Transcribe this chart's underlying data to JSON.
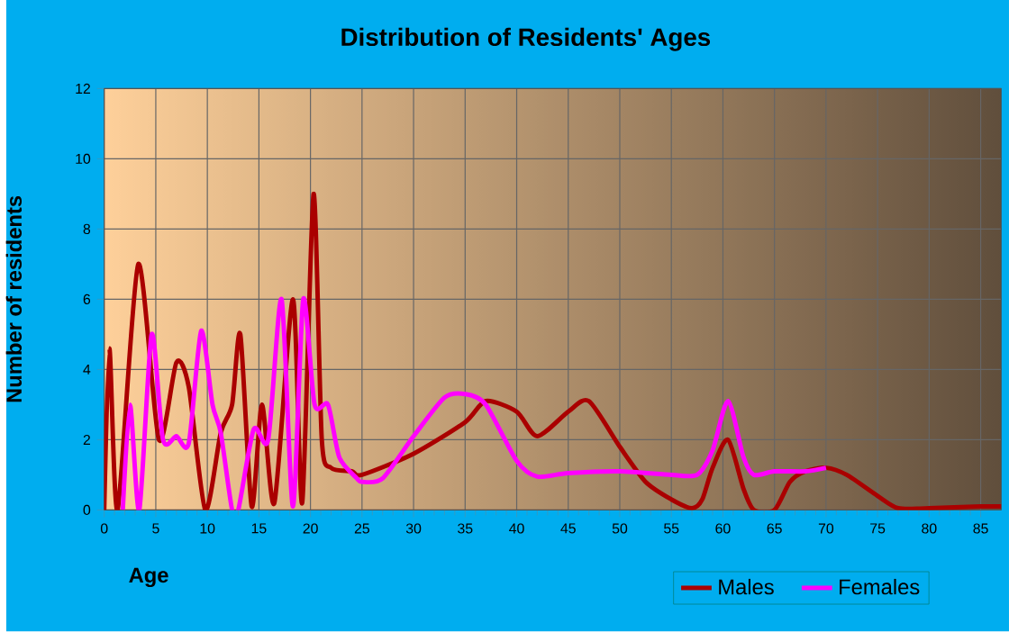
{
  "chart_data": {
    "type": "line",
    "title": "Distribution of Residents' Ages",
    "xlabel": "Age",
    "ylabel": "Number of residents",
    "xlim": [
      0,
      87
    ],
    "xticks": [
      0,
      5,
      10,
      15,
      20,
      25,
      30,
      35,
      40,
      45,
      50,
      55,
      60,
      65,
      70,
      75,
      80,
      85
    ],
    "ylim": [
      0,
      12
    ],
    "yticks": [
      0,
      2,
      4,
      6,
      8,
      10,
      12
    ],
    "grid": true,
    "legend": "bottom",
    "series": [
      {
        "name": "Males",
        "color": "#aa0000",
        "x": [
          0,
          0.5,
          1.3,
          3.3,
          5.3,
          7.0,
          8.2,
          9.8,
          11.3,
          12.4,
          13.2,
          14.3,
          15.3,
          16.5,
          18.3,
          19.2,
          20.3,
          21.1,
          22.0,
          24.0,
          25,
          30,
          35,
          37,
          40,
          42,
          45,
          47,
          50,
          52.5,
          55,
          57,
          58,
          59,
          60.5,
          62,
          63,
          65,
          66.5,
          68,
          70,
          72,
          75,
          77,
          80,
          85,
          87
        ],
        "values": [
          0,
          4.6,
          0,
          7,
          2,
          4.2,
          3.5,
          0,
          2.2,
          3,
          5,
          0.1,
          3,
          0.2,
          6,
          0.2,
          9,
          2,
          1.2,
          1.1,
          1.0,
          1.6,
          2.5,
          3.1,
          2.8,
          2.1,
          2.8,
          3.1,
          1.8,
          0.8,
          0.3,
          0.05,
          0.3,
          1.2,
          2.0,
          0.6,
          0,
          0,
          0.8,
          1.1,
          1.2,
          1.0,
          0.4,
          0.05,
          0.05,
          0.1,
          0.1
        ]
      },
      {
        "name": "Females",
        "color": "#ff00ff",
        "x": [
          1.8,
          2.5,
          3.4,
          4.6,
          5.7,
          7.0,
          8.2,
          9.4,
          10.5,
          11.3,
          12.4,
          13.0,
          14.5,
          15.9,
          17.2,
          18.3,
          19.3,
          20.4,
          21.7,
          22.8,
          24.5,
          25,
          27,
          30,
          33,
          35,
          37,
          40,
          42,
          45,
          50,
          55,
          57.5,
          59,
          60.5,
          62,
          63,
          65,
          68,
          70
        ],
        "values": [
          0,
          3,
          0,
          5,
          2,
          2.1,
          1.9,
          5.1,
          3,
          2.2,
          0,
          0,
          2.3,
          2,
          6,
          0.1,
          6,
          3,
          3,
          1.5,
          0.9,
          0.8,
          0.9,
          2.1,
          3.2,
          3.3,
          3.0,
          1.4,
          0.95,
          1.05,
          1.1,
          1.0,
          1.0,
          1.7,
          3.1,
          1.5,
          1.0,
          1.1,
          1.1,
          1.2
        ]
      }
    ]
  }
}
